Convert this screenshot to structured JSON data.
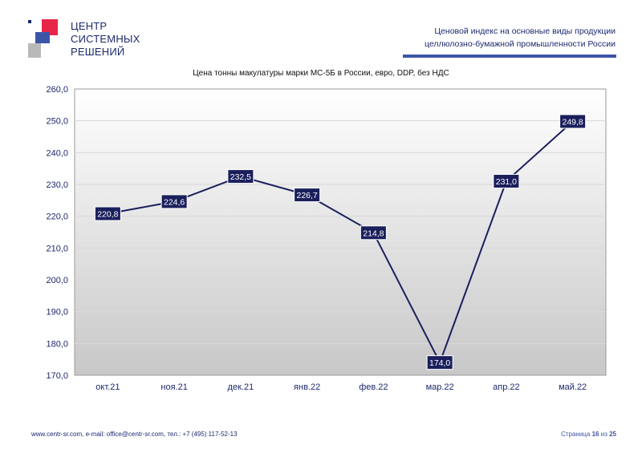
{
  "logo": {
    "lines": [
      "ЦЕНТР",
      "СИСТЕМНЫХ",
      "РЕШЕНИЙ"
    ]
  },
  "header": {
    "line1": "Ценовой индекс на основные виды продукции",
    "line2": "целлюлозно-бумажной промышленности России"
  },
  "chart_data": {
    "type": "line",
    "title": "Цена тонны макулатуры марки МС-5Б в России, евро, DDP, без НДС",
    "categories": [
      "окт.21",
      "ноя.21",
      "дек.21",
      "янв.22",
      "фев.22",
      "мар.22",
      "апр.22",
      "май.22"
    ],
    "values": [
      220.8,
      224.6,
      232.5,
      226.7,
      214.8,
      174.0,
      231.0,
      249.8
    ],
    "value_labels": [
      "220,8",
      "224,6",
      "232,5",
      "226,7",
      "214,8",
      "174,0",
      "231,0",
      "249,8"
    ],
    "ylim": [
      170,
      260
    ],
    "yticks": [
      "170,0",
      "180,0",
      "190,0",
      "200,0",
      "210,0",
      "220,0",
      "230,0",
      "240,0",
      "250,0",
      "260,0"
    ],
    "grid": true,
    "colors": {
      "line": "#1a1f5c",
      "label_bg": "#1a1f5c",
      "label_text": "#ffffff",
      "axis_text": "#1c2a6e"
    }
  },
  "footer": {
    "contacts": "www.centr-sr.com, e-mail: office@centr-sr.com, тел.: +7 (495) 117-52-13",
    "page_word": "Страница",
    "page_current": "16",
    "page_of": "из",
    "page_total": "25"
  }
}
